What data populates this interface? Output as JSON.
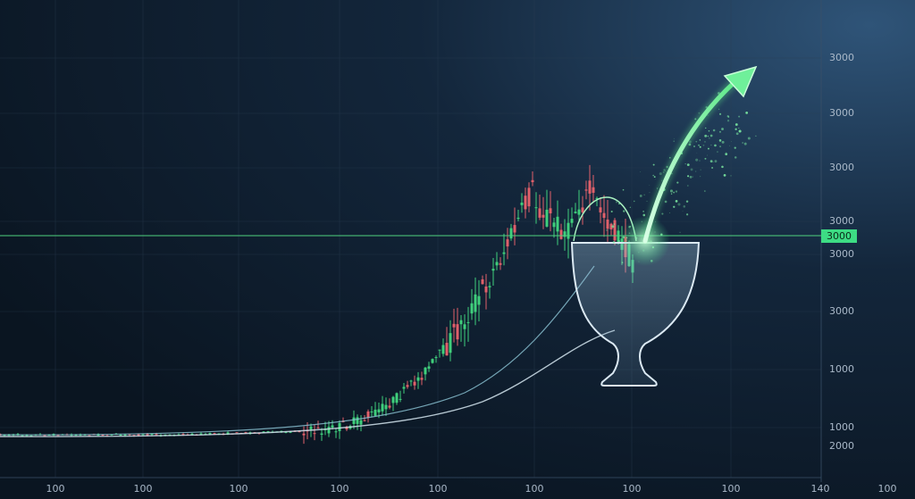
{
  "y_axis_labels": [
    "3000",
    "3000",
    "3000",
    "3000",
    "3000",
    "3000",
    "1000",
    "1000",
    "2000"
  ],
  "price_tag": "3000",
  "x_axis_labels": [
    "100",
    "100",
    "100",
    "100",
    "100",
    "100",
    "100",
    "100",
    "140",
    "100"
  ]
}
